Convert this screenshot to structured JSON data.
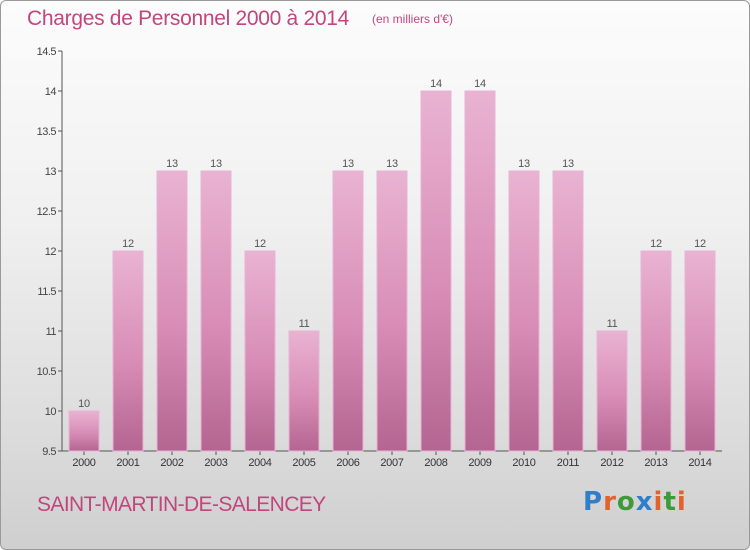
{
  "title": "Charges de Personnel 2000 à 2014",
  "subtitle": "(en milliers d'€)",
  "commune": "SAINT-MARTIN-DE-SALENCEY",
  "logo": {
    "text": "Proxiti",
    "letter_colors": [
      "#2f7ec8",
      "#e1632b",
      "#3c9a38",
      "#2f7ec8",
      "#e1632b",
      "#3c9a38",
      "#e1632b"
    ]
  },
  "colors": {
    "bar": "#d88db6",
    "bar_light": "#e9b3d2",
    "bar_dark": "#b46591",
    "text": "#c2467e",
    "axis": "#555555"
  },
  "chart_data": {
    "type": "bar",
    "title": "Charges de Personnel 2000 à 2014",
    "subtitle": "(en milliers d'€)",
    "categories": [
      "2000",
      "2001",
      "2002",
      "2003",
      "2004",
      "2005",
      "2006",
      "2007",
      "2008",
      "2009",
      "2010",
      "2011",
      "2012",
      "2013",
      "2014"
    ],
    "values": [
      10,
      12,
      13,
      13,
      12,
      11,
      13,
      13,
      14,
      14,
      13,
      13,
      11,
      12,
      12
    ],
    "data_labels": [
      "10",
      "12",
      "13",
      "13",
      "12",
      "11",
      "13",
      "13",
      "14",
      "14",
      "13",
      "13",
      "11",
      "12",
      "12"
    ],
    "yticks": [
      "9.5",
      "10",
      "10.5",
      "11",
      "11.5",
      "12",
      "12.5",
      "13",
      "13.5",
      "14",
      "14.5"
    ],
    "ylim": [
      9.5,
      14.5
    ],
    "grid": false,
    "legend": "none",
    "xlabel": "",
    "ylabel": ""
  }
}
